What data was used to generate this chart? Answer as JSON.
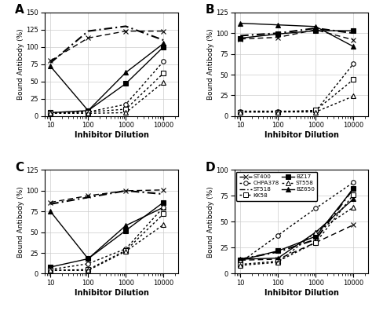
{
  "x": [
    10,
    100,
    1000,
    10000
  ],
  "panels": {
    "A": {
      "ylim": [
        0,
        150
      ],
      "yticks": [
        0,
        25,
        50,
        75,
        100,
        125,
        150
      ],
      "series": [
        {
          "label": "ST400",
          "style": "dashed",
          "marker": "x",
          "markersize": 5,
          "linewidth": 1.0,
          "filled": false,
          "data": [
            80,
            113,
            123,
            123
          ]
        },
        {
          "label": "ST518",
          "style": "dashdot",
          "marker": null,
          "markersize": 5,
          "linewidth": 1.5,
          "filled": false,
          "data": [
            77,
            123,
            130,
            110
          ]
        },
        {
          "label": "BZ17",
          "style": "solid",
          "marker": "s",
          "markersize": 4,
          "linewidth": 1.0,
          "filled": true,
          "data": [
            5,
            8,
            47,
            100
          ]
        },
        {
          "label": "BZ650",
          "style": "solid",
          "marker": "^",
          "markersize": 5,
          "linewidth": 1.0,
          "filled": true,
          "data": [
            72,
            8,
            63,
            105
          ]
        },
        {
          "label": "CHPA378",
          "style": "dotted",
          "marker": "o",
          "markersize": 4,
          "linewidth": 1.0,
          "filled": false,
          "data": [
            5,
            6,
            17,
            79
          ]
        },
        {
          "label": "KK58",
          "style": "dotted",
          "marker": "s",
          "markersize": 4,
          "linewidth": 1.0,
          "filled": false,
          "data": [
            4,
            6,
            10,
            62
          ]
        },
        {
          "label": "ST558",
          "style": "dotted",
          "marker": "^",
          "markersize": 4,
          "linewidth": 1.0,
          "filled": false,
          "data": [
            4,
            4,
            5,
            49
          ]
        }
      ]
    },
    "B": {
      "ylim": [
        0,
        125
      ],
      "yticks": [
        0,
        25,
        50,
        75,
        100,
        125
      ],
      "series": [
        {
          "label": "ST400",
          "style": "dashed",
          "marker": "x",
          "markersize": 5,
          "linewidth": 1.0,
          "filled": false,
          "data": [
            93,
            95,
            104,
            92
          ]
        },
        {
          "label": "ST518",
          "style": "dashdot",
          "marker": null,
          "markersize": 5,
          "linewidth": 1.5,
          "filled": false,
          "data": [
            97,
            100,
            106,
            100
          ]
        },
        {
          "label": "BZ17",
          "style": "solid",
          "marker": "s",
          "markersize": 4,
          "linewidth": 1.0,
          "filled": true,
          "data": [
            94,
            99,
            103,
            103
          ]
        },
        {
          "label": "BZ650",
          "style": "solid",
          "marker": "^",
          "markersize": 5,
          "linewidth": 1.0,
          "filled": true,
          "data": [
            112,
            110,
            108,
            84
          ]
        },
        {
          "label": "CHPA378",
          "style": "dotted",
          "marker": "o",
          "markersize": 4,
          "linewidth": 1.0,
          "filled": false,
          "data": [
            6,
            6,
            6,
            63
          ]
        },
        {
          "label": "KK58",
          "style": "dotted",
          "marker": "s",
          "markersize": 4,
          "linewidth": 1.0,
          "filled": false,
          "data": [
            5,
            5,
            7,
            44
          ]
        },
        {
          "label": "ST558",
          "style": "dotted",
          "marker": "^",
          "markersize": 4,
          "linewidth": 1.0,
          "filled": false,
          "data": [
            5,
            5,
            5,
            24
          ]
        }
      ]
    },
    "C": {
      "ylim": [
        0,
        125
      ],
      "yticks": [
        0,
        25,
        50,
        75,
        100,
        125
      ],
      "series": [
        {
          "label": "ST400",
          "style": "dashed",
          "marker": "x",
          "markersize": 5,
          "linewidth": 1.0,
          "filled": false,
          "data": [
            86,
            94,
            100,
            101
          ]
        },
        {
          "label": "ST518",
          "style": "dashdot",
          "marker": null,
          "markersize": 5,
          "linewidth": 1.5,
          "filled": false,
          "data": [
            84,
            92,
            100,
            96
          ]
        },
        {
          "label": "BZ17",
          "style": "solid",
          "marker": "s",
          "markersize": 4,
          "linewidth": 1.0,
          "filled": true,
          "data": [
            8,
            18,
            52,
            86
          ]
        },
        {
          "label": "BZ650",
          "style": "solid",
          "marker": "^",
          "markersize": 5,
          "linewidth": 1.0,
          "filled": true,
          "data": [
            75,
            18,
            58,
            80
          ]
        },
        {
          "label": "CHPA378",
          "style": "dotted",
          "marker": "o",
          "markersize": 4,
          "linewidth": 1.0,
          "filled": false,
          "data": [
            5,
            12,
            30,
            80
          ]
        },
        {
          "label": "KK58",
          "style": "dotted",
          "marker": "s",
          "markersize": 4,
          "linewidth": 1.0,
          "filled": false,
          "data": [
            4,
            5,
            28,
            72
          ]
        },
        {
          "label": "ST558",
          "style": "dotted",
          "marker": "^",
          "markersize": 4,
          "linewidth": 1.0,
          "filled": false,
          "data": [
            4,
            4,
            27,
            59
          ]
        }
      ]
    },
    "D": {
      "ylim": [
        0,
        100
      ],
      "yticks": [
        0,
        25,
        50,
        75,
        100
      ],
      "series": [
        {
          "label": "ST400",
          "style": "dashed",
          "marker": "x",
          "markersize": 5,
          "linewidth": 1.0,
          "filled": false,
          "data": [
            13,
            14,
            30,
            47
          ]
        },
        {
          "label": "ST518",
          "style": "dashdot",
          "marker": null,
          "markersize": 5,
          "linewidth": 1.5,
          "filled": false,
          "data": [
            14,
            21,
            33,
            82
          ]
        },
        {
          "label": "BZ17",
          "style": "solid",
          "marker": "s",
          "markersize": 4,
          "linewidth": 1.0,
          "filled": true,
          "data": [
            13,
            22,
            36,
            82
          ]
        },
        {
          "label": "BZ650",
          "style": "solid",
          "marker": "^",
          "markersize": 5,
          "linewidth": 1.0,
          "filled": true,
          "data": [
            14,
            15,
            40,
            72
          ]
        },
        {
          "label": "CHPA378",
          "style": "dotted",
          "marker": "o",
          "markersize": 4,
          "linewidth": 1.0,
          "filled": false,
          "data": [
            11,
            37,
            63,
            88
          ]
        },
        {
          "label": "KK58",
          "style": "dotted",
          "marker": "s",
          "markersize": 4,
          "linewidth": 1.0,
          "filled": false,
          "data": [
            9,
            12,
            30,
            76
          ]
        },
        {
          "label": "ST558",
          "style": "dotted",
          "marker": "^",
          "markersize": 4,
          "linewidth": 1.0,
          "filled": false,
          "data": [
            8,
            11,
            40,
            64
          ]
        }
      ]
    }
  },
  "legend_entries": [
    {
      "label": "ST400",
      "style": "dashed",
      "marker": "x",
      "filled": false
    },
    {
      "label": "CHPA378",
      "style": "dotted",
      "marker": "o",
      "filled": false
    },
    {
      "label": "ST518",
      "style": "dashdot",
      "marker": null,
      "filled": false
    },
    {
      "label": "KK58",
      "style": "dotted",
      "marker": "s",
      "filled": false
    },
    {
      "label": "BZ17",
      "style": "solid",
      "marker": "s",
      "filled": true
    },
    {
      "label": "ST558",
      "style": "dotted",
      "marker": "^",
      "filled": false
    },
    {
      "label": "BZ650",
      "style": "solid",
      "marker": "^",
      "filled": true
    }
  ],
  "style_map": {
    "dashed": [
      5,
      3
    ],
    "dashdot": [
      5,
      2,
      1,
      2
    ],
    "solid": "solid",
    "dotted": [
      2,
      2
    ]
  }
}
